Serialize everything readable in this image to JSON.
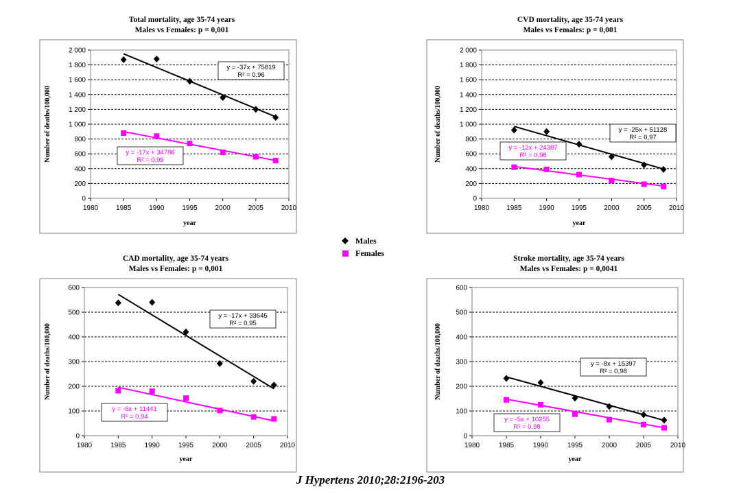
{
  "legend": {
    "males": {
      "label": "Males",
      "color": "#000000",
      "marker": "diamond"
    },
    "females": {
      "label": "Females",
      "color": "#ff00ff",
      "marker": "square"
    }
  },
  "citation": "J Hypertens 2010;28:2196-203",
  "chart_data": [
    {
      "type": "scatter",
      "title": "Total mortality, age 35-74 years",
      "subtitle": "Males vs Females: p = 0,001",
      "xlabel": "year",
      "ylabel": "Number of deaths/100,000",
      "xlim": [
        1980,
        2010
      ],
      "ylim": [
        0,
        2000
      ],
      "xticks": [
        "1980",
        "1985",
        "1990",
        "1995",
        "2000",
        "2005",
        "2010"
      ],
      "yticks": [
        "0",
        "200",
        "400",
        "600",
        "800",
        "1 000",
        "1 200",
        "1 400",
        "1 600",
        "1 800",
        "2 000"
      ],
      "grid": true,
      "series": [
        {
          "name": "Males",
          "color": "#000000",
          "marker": "diamond",
          "x": [
            1985,
            1990,
            1995,
            2000,
            2005,
            2008
          ],
          "y": [
            1870,
            1880,
            1580,
            1360,
            1200,
            1090
          ],
          "trend": {
            "from": [
              1985,
              1950
            ],
            "to": [
              2008,
              1100
            ],
            "equation": "y = -37x + 75819",
            "r2": "R² = 0,96"
          }
        },
        {
          "name": "Females",
          "color": "#ff00ff",
          "marker": "square",
          "x": [
            1985,
            1990,
            1995,
            2000,
            2005,
            2008
          ],
          "y": [
            880,
            840,
            740,
            620,
            560,
            510
          ],
          "trend": {
            "from": [
              1985,
              900
            ],
            "to": [
              2008,
              510
            ],
            "equation": "y = -17x + 34786",
            "r2": "R² = 0,99"
          }
        }
      ]
    },
    {
      "type": "scatter",
      "title": "CVD mortality, age 35-74 years",
      "subtitle": "Males vs Females: p = 0,001",
      "xlabel": "year",
      "ylabel": "Number of deaths/100,000",
      "xlim": [
        1980,
        2010
      ],
      "ylim": [
        0,
        2000
      ],
      "xticks": [
        "1980",
        "1985",
        "1990",
        "1995",
        "2000",
        "2005",
        "2010"
      ],
      "yticks": [
        "0",
        "200",
        "400",
        "600",
        "800",
        "1 000",
        "1 200",
        "1 400",
        "1 600",
        "1 800",
        "2 000"
      ],
      "grid": true,
      "series": [
        {
          "name": "Males",
          "color": "#000000",
          "marker": "diamond",
          "x": [
            1985,
            1990,
            1995,
            2000,
            2005,
            2008
          ],
          "y": [
            920,
            900,
            730,
            560,
            450,
            390
          ],
          "trend": {
            "from": [
              1985,
              970
            ],
            "to": [
              2008,
              395
            ],
            "equation": "y = -25x + 51128",
            "r2": "R² = 0,97"
          }
        },
        {
          "name": "Females",
          "color": "#ff00ff",
          "marker": "square",
          "x": [
            1985,
            1990,
            1995,
            2000,
            2005,
            2008
          ],
          "y": [
            420,
            390,
            320,
            240,
            190,
            160
          ],
          "trend": {
            "from": [
              1985,
              430
            ],
            "to": [
              2008,
              165
            ],
            "equation": "y = -12x + 24387",
            "r2": "R² = 0,98"
          }
        }
      ]
    },
    {
      "type": "scatter",
      "title": "CAD mortality, age 35-74 years",
      "subtitle": "Males vs Females: p = 0,001",
      "xlabel": "year",
      "ylabel": "Number of deaths/100,000",
      "xlim": [
        1980,
        2010
      ],
      "ylim": [
        0,
        600
      ],
      "xticks": [
        "1980",
        "1985",
        "1990",
        "1995",
        "2000",
        "2005",
        "2010"
      ],
      "yticks": [
        "0",
        "100",
        "200",
        "300",
        "400",
        "500",
        "600"
      ],
      "grid": true,
      "series": [
        {
          "name": "Males",
          "color": "#000000",
          "marker": "diamond",
          "x": [
            1985,
            1990,
            1995,
            2000,
            2005,
            2008
          ],
          "y": [
            538,
            540,
            420,
            292,
            220,
            205
          ],
          "trend": {
            "from": [
              1985,
              572
            ],
            "to": [
              2008,
              190
            ],
            "equation": "y = -17x + 33645",
            "r2": "R² = 0,95"
          }
        },
        {
          "name": "Females",
          "color": "#ff00ff",
          "marker": "square",
          "x": [
            1985,
            1990,
            1995,
            2000,
            2005,
            2008
          ],
          "y": [
            182,
            180,
            152,
            102,
            76,
            68
          ],
          "trend": {
            "from": [
              1985,
              196
            ],
            "to": [
              2008,
              60
            ],
            "equation": "y = -6x + 11441",
            "r2": "R² = 0,94"
          }
        }
      ]
    },
    {
      "type": "scatter",
      "title": "Stroke mortality, age 35-74 years",
      "subtitle": "Males vs Females: p = 0,0041",
      "xlabel": "year",
      "ylabel": "Number of deaths/100,000",
      "xlim": [
        1980,
        2010
      ],
      "ylim": [
        0,
        600
      ],
      "xticks": [
        "1980",
        "1985",
        "1990",
        "1995",
        "2000",
        "2005",
        "2010"
      ],
      "yticks": [
        "0",
        "100",
        "200",
        "300",
        "400",
        "500",
        "600"
      ],
      "grid": true,
      "series": [
        {
          "name": "Males",
          "color": "#000000",
          "marker": "diamond",
          "x": [
            1985,
            1990,
            1995,
            2000,
            2005,
            2008
          ],
          "y": [
            232,
            215,
            152,
            118,
            85,
            63
          ],
          "trend": {
            "from": [
              1985,
              238
            ],
            "to": [
              2008,
              62
            ],
            "equation": "y = -8x + 15397",
            "r2": "R² = 0,98"
          }
        },
        {
          "name": "Females",
          "color": "#ff00ff",
          "marker": "square",
          "x": [
            1985,
            1990,
            1995,
            2000,
            2005,
            2008
          ],
          "y": [
            145,
            125,
            87,
            65,
            45,
            32
          ],
          "trend": {
            "from": [
              1985,
              148
            ],
            "to": [
              2008,
              32
            ],
            "equation": "y = -5x + 10255",
            "r2": "R² = 0,98"
          }
        }
      ]
    }
  ]
}
